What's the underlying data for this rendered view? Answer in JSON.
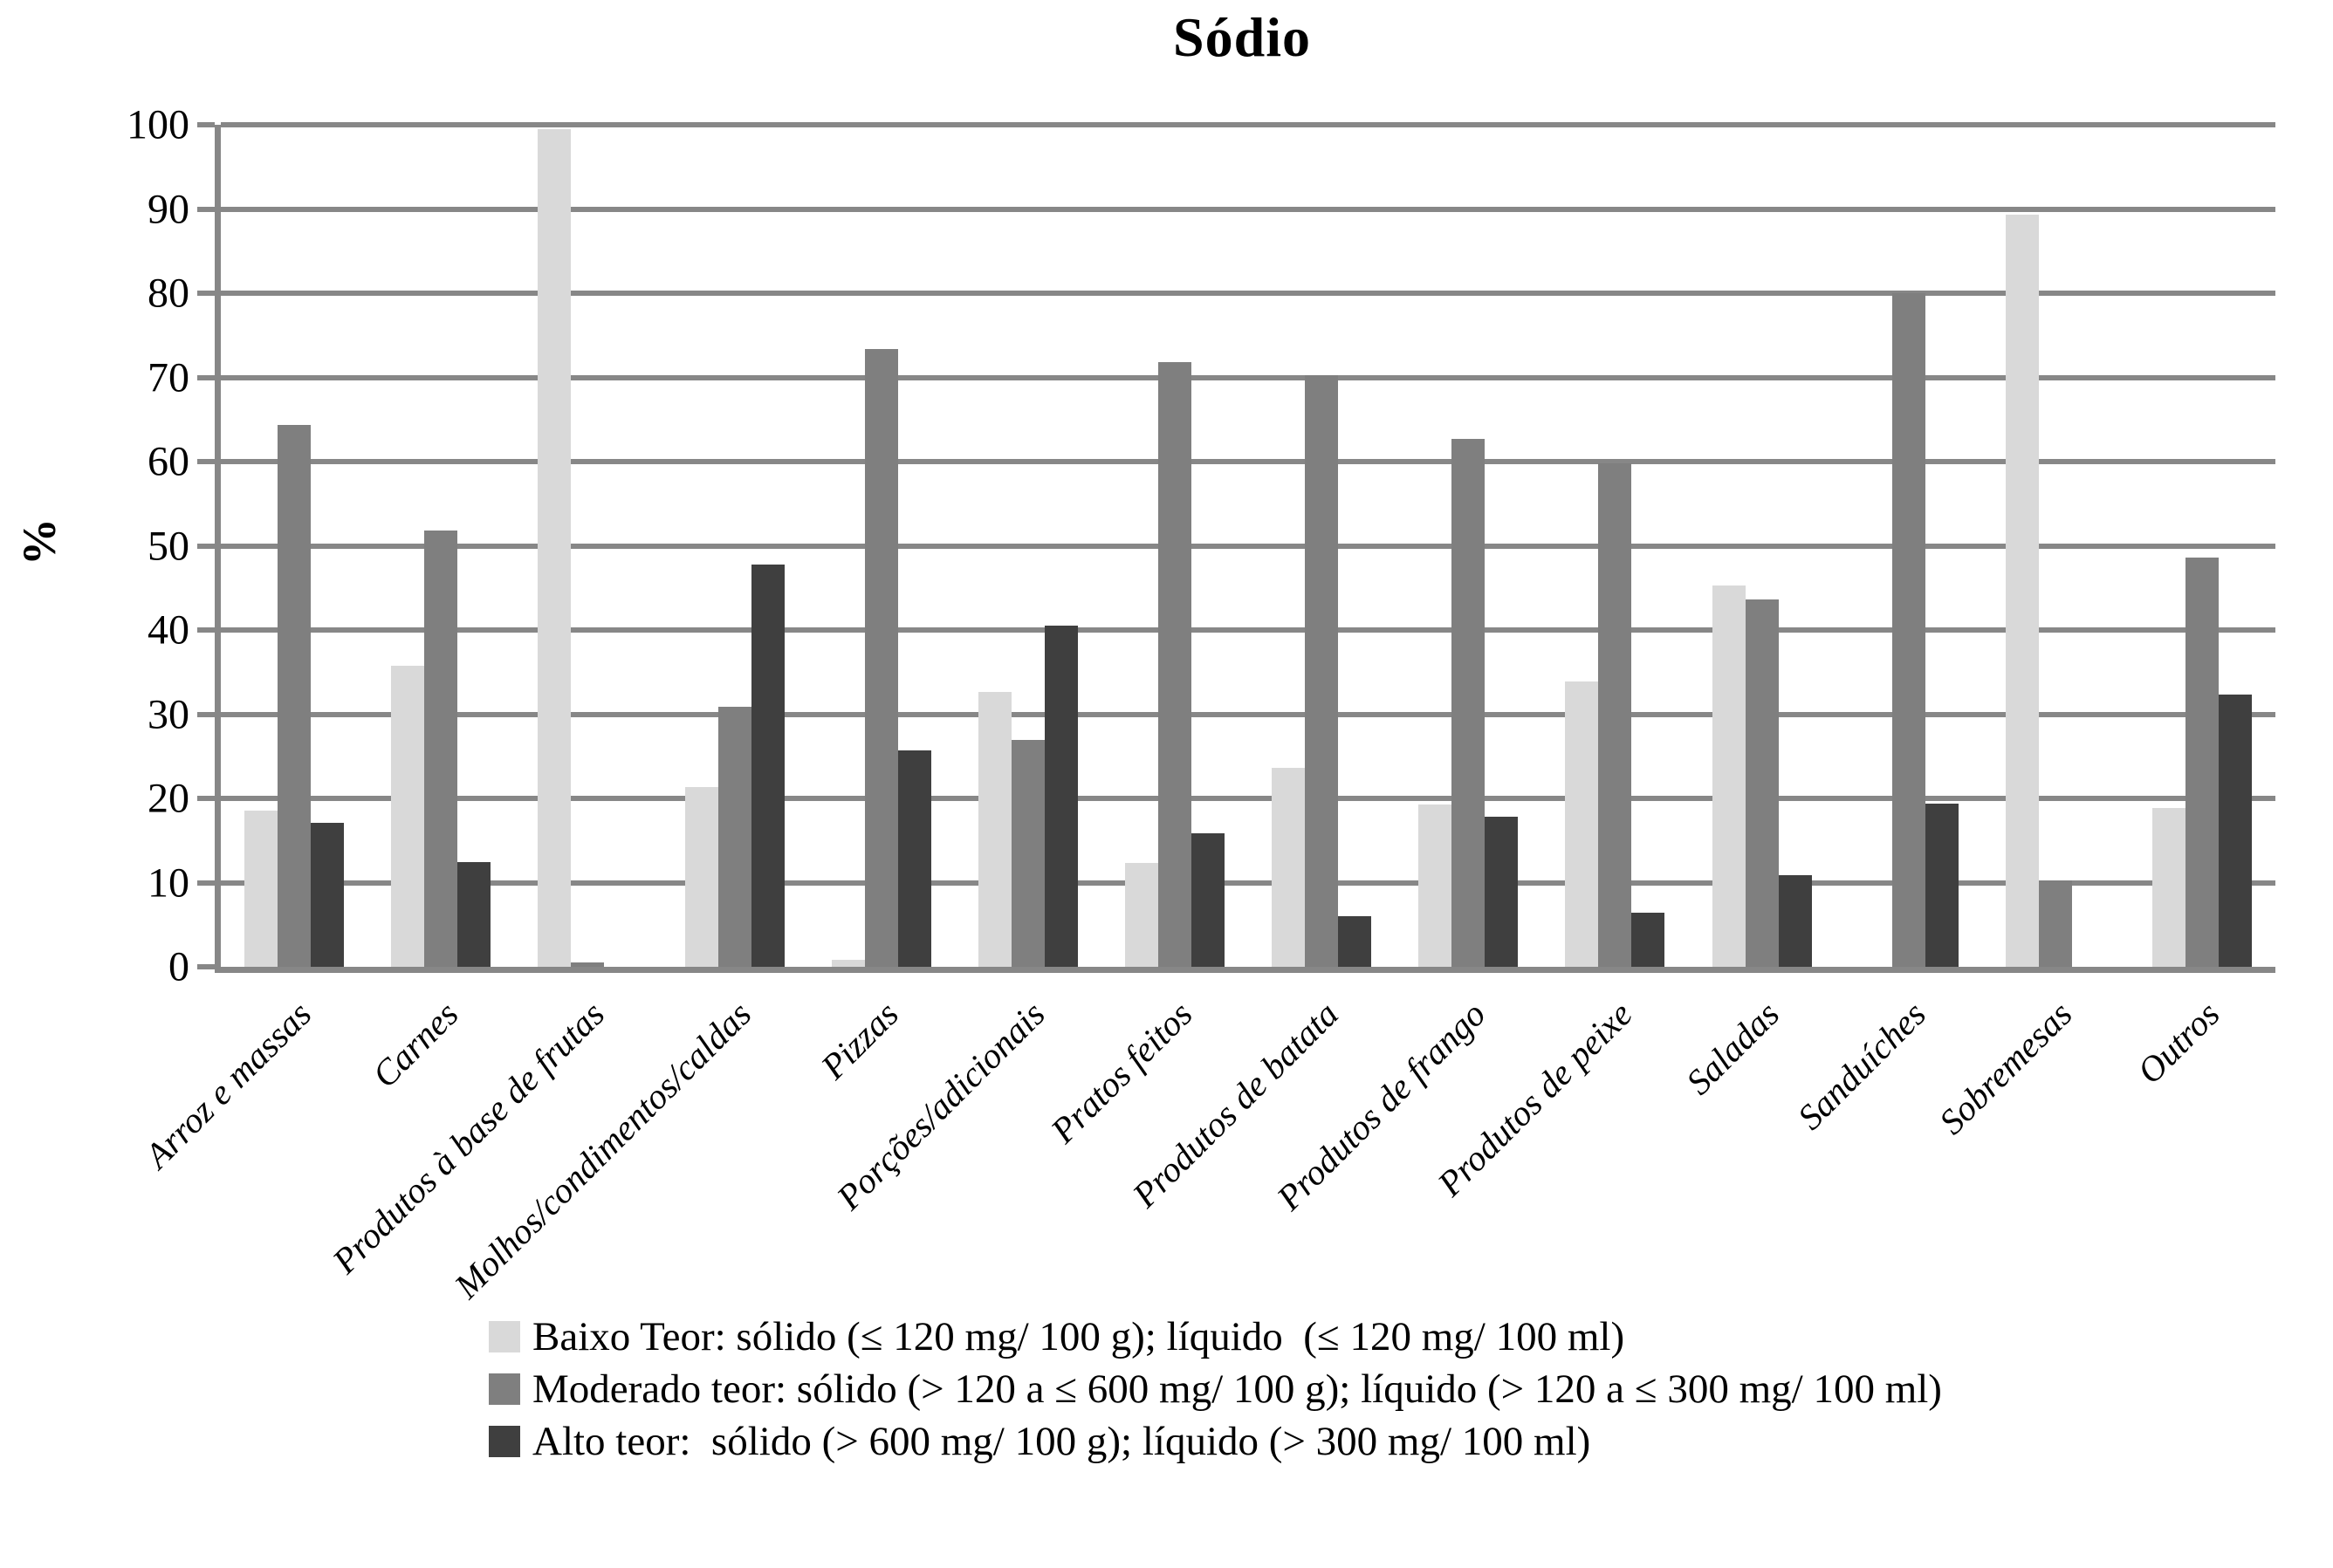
{
  "chart_data": {
    "type": "bar",
    "title": "Sódio",
    "ylabel": "%",
    "ylim": [
      0,
      100
    ],
    "ytick_interval": 10,
    "ytick_labels": [
      "0",
      "10",
      "20",
      "30",
      "40",
      "50",
      "60",
      "70",
      "80",
      "90",
      "100"
    ],
    "grid": true,
    "legend_position": "bottom",
    "categories": [
      "Arroz e massas",
      "Carnes",
      "Produtos à base de frutas",
      "Molhos/condimentos/caldas",
      "Pizzas",
      "Porções/adicionais",
      "Pratos feitos",
      "Produtos de batata",
      "Produtos de frango",
      "Produtos de peixe",
      "Saladas",
      "Sanduíches",
      "Sobremesas",
      "Outros"
    ],
    "series": [
      {
        "name": "Baixo Teor: sólido (≤ 120 mg/ 100 g); líquido  (≤ 120 mg/ 100 ml)",
        "color": "#d9d9d9",
        "values": [
          18.5,
          35.8,
          99.5,
          21.3,
          0.8,
          32.6,
          12.3,
          23.6,
          19.3,
          33.9,
          45.3,
          0,
          89.3,
          18.9
        ]
      },
      {
        "name": "Moderado teor: sólido (> 120 a ≤ 600 mg/ 100 g); líquido (> 120 a ≤ 300 mg/ 100 ml)",
        "color": "#7f7f7f",
        "values": [
          64.4,
          51.8,
          0.5,
          30.9,
          73.4,
          26.9,
          71.8,
          70.3,
          62.7,
          59.8,
          43.6,
          80,
          10.3,
          48.6
        ]
      },
      {
        "name": "Alto teor:  sólido (> 600 mg/ 100 g); líquido (> 300 mg/ 100 ml)",
        "color": "#3f3f3f",
        "values": [
          17.1,
          12.4,
          0,
          47.8,
          25.7,
          40.5,
          15.9,
          6.0,
          17.8,
          6.4,
          10.9,
          19.4,
          0,
          32.3
        ]
      }
    ],
    "gridline_color": "#878787",
    "axis_color": "#878787",
    "text_color": "#000000"
  }
}
